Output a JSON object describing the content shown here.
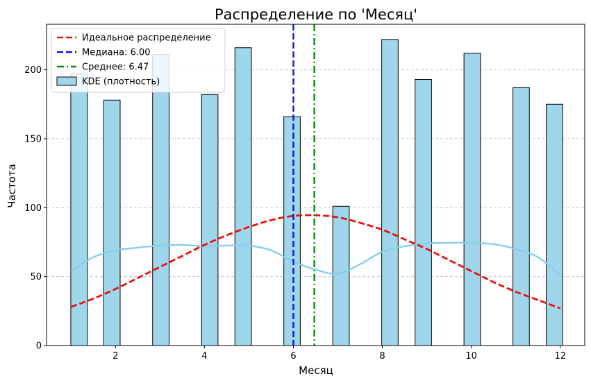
{
  "chart_data": {
    "type": "bar",
    "title": "Распределение по 'Месяц'",
    "xlabel": "Месяц",
    "ylabel": "Частота",
    "xlim": [
      0.45,
      12.55
    ],
    "ylim": [
      0,
      233
    ],
    "xticks": [
      2,
      4,
      6,
      8,
      10,
      12
    ],
    "yticks": [
      0,
      50,
      100,
      150,
      200
    ],
    "grid": "y-dashed",
    "legend_position": "upper-left",
    "bar_width": 0.37,
    "bars": [
      {
        "x": 1.18,
        "value": 197
      },
      {
        "x": 1.92,
        "value": 178
      },
      {
        "x": 3.02,
        "value": 211
      },
      {
        "x": 4.12,
        "value": 182
      },
      {
        "x": 4.87,
        "value": 216
      },
      {
        "x": 5.97,
        "value": 166
      },
      {
        "x": 7.07,
        "value": 101
      },
      {
        "x": 8.17,
        "value": 222
      },
      {
        "x": 8.92,
        "value": 193
      },
      {
        "x": 10.02,
        "value": 212
      },
      {
        "x": 11.12,
        "value": 187
      },
      {
        "x": 11.87,
        "value": 175
      }
    ],
    "series": [
      {
        "name": "Идеальное распределение",
        "type": "line",
        "style": "dashed",
        "color": "#e8120c",
        "x": [
          1,
          1.5,
          2,
          2.5,
          3,
          3.5,
          4,
          4.5,
          5,
          5.5,
          6,
          6.5,
          7,
          7.5,
          8,
          8.5,
          9,
          9.5,
          10,
          10.5,
          11,
          11.5,
          12
        ],
        "y": [
          28,
          34,
          41,
          49,
          57,
          65,
          73,
          80,
          86,
          91,
          94,
          94.5,
          93,
          89,
          84,
          77,
          70,
          62,
          54,
          46,
          39,
          33,
          27
        ]
      },
      {
        "name": "Медиана: 6.00",
        "type": "vline",
        "style": "dashed",
        "color": "#0a16e6",
        "value": 6.0
      },
      {
        "name": "Среднее: 6.47",
        "type": "vline",
        "style": "dashdot",
        "color": "#0a8a0a",
        "value": 6.47
      },
      {
        "name": "KDE (плотность)",
        "type": "kde",
        "color": "#87ceeb",
        "bar_color": "#a0d6ec",
        "x": [
          1,
          1.5,
          2,
          2.5,
          3,
          3.5,
          4,
          4.5,
          5,
          5.5,
          6,
          6.5,
          7,
          7.5,
          8,
          8.5,
          9,
          9.5,
          10,
          10.5,
          11,
          11.5,
          12
        ],
        "y": [
          54,
          64,
          69,
          71,
          72.5,
          73,
          72,
          72.5,
          72.5,
          69,
          61,
          55,
          52,
          59,
          68,
          72,
          74,
          74.5,
          74.5,
          73.5,
          70,
          64,
          51
        ]
      }
    ]
  }
}
